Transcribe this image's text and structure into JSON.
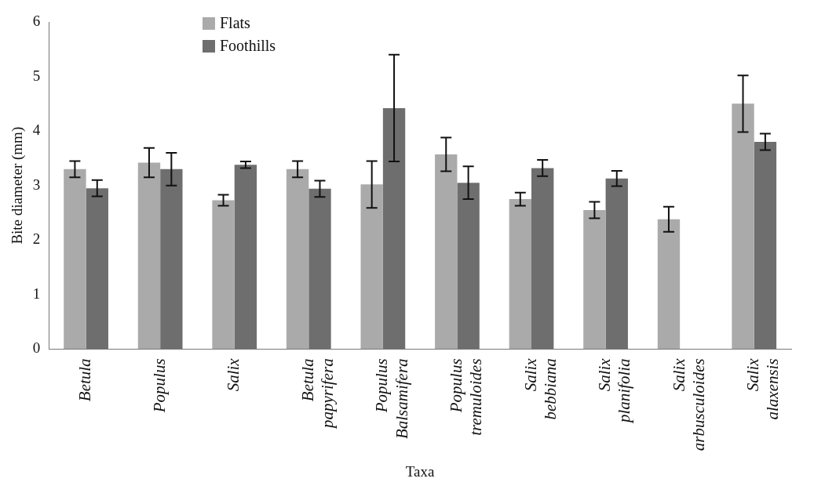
{
  "chart_data": {
    "type": "bar",
    "xlabel": "Taxa",
    "ylabel": "Bite diameter (mm)",
    "categories": [
      "Betula",
      "Populus",
      "Salix",
      "Betula papyrifera",
      "Populus Balsamifera",
      "Populus tremuloides",
      "Salix bebbiana",
      "Salix planifolia",
      "Salix arbusculoides",
      "Salix alaxensis"
    ],
    "series": [
      {
        "name": "Flats",
        "color": "#aaaaaa",
        "values": [
          3.3,
          3.42,
          2.73,
          3.3,
          3.02,
          3.57,
          2.75,
          2.55,
          2.38,
          4.5
        ],
        "errors": [
          0.15,
          0.27,
          0.1,
          0.15,
          0.43,
          0.31,
          0.12,
          0.15,
          0.23,
          0.52
        ]
      },
      {
        "name": "Foothills",
        "color": "#6e6e6e",
        "values": [
          2.95,
          3.3,
          3.38,
          2.94,
          4.42,
          3.05,
          3.32,
          3.13,
          null,
          3.8
        ],
        "errors": [
          0.15,
          0.3,
          0.06,
          0.15,
          0.98,
          0.3,
          0.15,
          0.14,
          null,
          0.15
        ]
      }
    ],
    "ylim": [
      0,
      6
    ],
    "yticks": [
      0,
      1,
      2,
      3,
      4,
      5,
      6
    ],
    "grid": false,
    "legend": "top left"
  }
}
